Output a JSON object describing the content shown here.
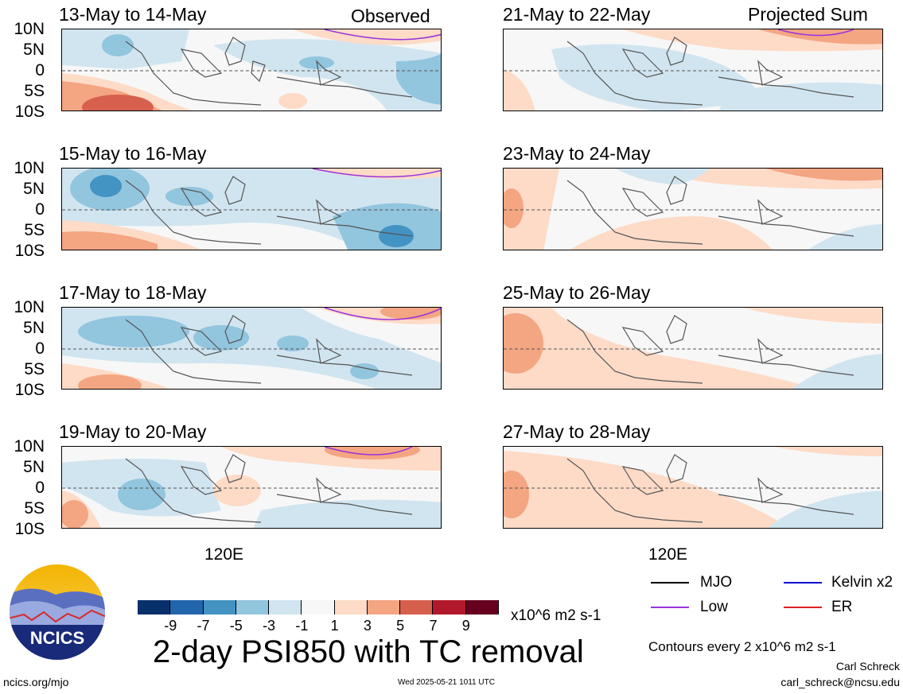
{
  "panels": {
    "left": [
      {
        "title": "13-May to 14-May",
        "corner": "Observed"
      },
      {
        "title": "15-May to 16-May",
        "corner": ""
      },
      {
        "title": "17-May to 18-May",
        "corner": ""
      },
      {
        "title": "19-May to 20-May",
        "corner": ""
      }
    ],
    "right": [
      {
        "title": "21-May to 22-May",
        "corner": "Projected Sum"
      },
      {
        "title": "23-May to 24-May",
        "corner": ""
      },
      {
        "title": "25-May to 26-May",
        "corner": ""
      },
      {
        "title": "27-May to 28-May",
        "corner": ""
      }
    ]
  },
  "axes": {
    "lat_labels": [
      "10N",
      "5N",
      "0",
      "5S",
      "10S"
    ],
    "lon_label": "120E"
  },
  "colorbar": {
    "colors": [
      "#08306b",
      "#2166ac",
      "#4393c3",
      "#92c5de",
      "#d1e5f0",
      "#f7f7f7",
      "#fddbc7",
      "#f4a582",
      "#d6604d",
      "#b2182b",
      "#67001f"
    ],
    "ticks": [
      "-9",
      "-7",
      "-5",
      "-3",
      "-1",
      "1",
      "3",
      "5",
      "7",
      "9"
    ],
    "units": "x10^6 m2 s-1"
  },
  "title": "2-day PSI850 with TC removal",
  "legend": [
    {
      "label": "MJO",
      "color": "#000000"
    },
    {
      "label": "Kelvin x2",
      "color": "#0000cc"
    },
    {
      "label": "Low",
      "color": "#9933dd"
    },
    {
      "label": "ER",
      "color": "#dd2222"
    }
  ],
  "contour_note": "Contours every 2 x10^6 m2 s-1",
  "logo": {
    "text": "NCICS"
  },
  "footer": {
    "url": "ncics.org/mjo",
    "timestamp": "Wed 2025-05-21 1011 UTC",
    "author": "Carl Schreck",
    "email": "carl_schreck@ncsu.edu"
  }
}
